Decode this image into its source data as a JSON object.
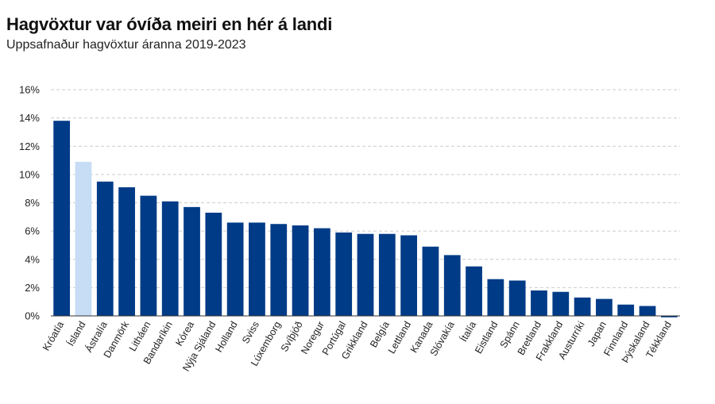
{
  "chart_data": {
    "type": "bar",
    "title": "Hagvöxtur var óvíða meiri en hér á landi",
    "subtitle": "Uppsafnaður hagvöxtur áranna 2019-2023",
    "xlabel": "",
    "ylabel": "",
    "ylim": [
      0,
      16
    ],
    "yticks": [
      "0%",
      "2%",
      "4%",
      "6%",
      "8%",
      "10%",
      "12%",
      "14%",
      "16%"
    ],
    "grid": true,
    "categories": [
      "Króatía",
      "Ísland",
      "Ástralía",
      "Danmörk",
      "Litháen",
      "Bandaríkin",
      "Kórea",
      "Nýja Sjáland",
      "Holland",
      "Sviss",
      "Lúxemborg",
      "Svíþjóð",
      "Noregur",
      "Portúgal",
      "Grikkland",
      "Belgía",
      "Lettland",
      "Kanada",
      "Slóvakía",
      "Ítalía",
      "Eistland",
      "Spánn",
      "Bretland",
      "Frakkland",
      "Austurríki",
      "Japan",
      "Finnland",
      "Þýskaland",
      "Tékkland"
    ],
    "values": [
      13.8,
      10.9,
      9.5,
      9.1,
      8.5,
      8.1,
      7.7,
      7.3,
      6.6,
      6.6,
      6.5,
      6.4,
      6.2,
      5.9,
      5.8,
      5.8,
      5.7,
      4.9,
      4.3,
      3.5,
      2.6,
      2.5,
      1.8,
      1.7,
      1.3,
      1.2,
      0.8,
      0.7,
      -0.1
    ],
    "highlight_category": "Ísland",
    "colors": {
      "bar": "#003b87",
      "highlight": "#c7dcf5",
      "grid": "#cccccc",
      "axis": "#333333"
    }
  }
}
